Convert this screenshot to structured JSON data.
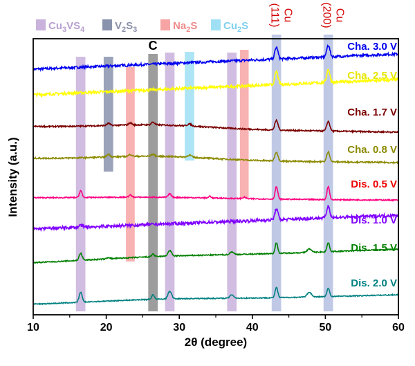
{
  "chart_data": {
    "type": "line",
    "title": "",
    "xlabel": "2θ (degree)",
    "ylabel": "Intensity (a.u.)",
    "xlim": [
      10,
      60
    ],
    "xticks": [
      10,
      20,
      30,
      40,
      50,
      60
    ],
    "legend": [
      {
        "name": "Cu3VS4",
        "color": "#c9b2dc",
        "text_color": "#b8a0d0"
      },
      {
        "name": "V2S3",
        "color": "#8a93ae",
        "text_color": "#8a8fa8"
      },
      {
        "name": "Na2S",
        "color": "#f7a4a4",
        "text_color": "#f08a8a"
      },
      {
        "name": "Cu2S",
        "color": "#9fe0f5",
        "text_color": "#7fd0f0"
      }
    ],
    "legend_display": [
      {
        "base": "Cu",
        "sub1": "3",
        "mid": "VS",
        "sub2": "4"
      },
      {
        "base": "V",
        "sub1": "2",
        "mid": "S",
        "sub2": "3"
      },
      {
        "base": "Na",
        "sub1": "2",
        "mid": "S",
        "sub2": ""
      },
      {
        "base": "Cu",
        "sub1": "2",
        "mid": "S",
        "sub2": ""
      }
    ],
    "annotation_c": "C",
    "cu_references": [
      {
        "element": "Cu",
        "hkl": "(111)",
        "position": 43.3
      },
      {
        "element": "Cu",
        "hkl": "(200)",
        "position": 50.4
      }
    ],
    "phase_bands": [
      {
        "phase": "Cu3VS4",
        "center": 16.5,
        "width": 1.3,
        "y_top": 82,
        "y_bottom": 450,
        "color": "#c9b2dc"
      },
      {
        "phase": "Cu3VS4",
        "center": 28.7,
        "width": 1.3,
        "y_top": 76,
        "y_bottom": 450,
        "color": "#c9b2dc"
      },
      {
        "phase": "Cu3VS4",
        "center": 37.2,
        "width": 1.3,
        "y_top": 76,
        "y_bottom": 450,
        "color": "#c9b2dc"
      },
      {
        "phase": "V2S3",
        "center": 20.3,
        "width": 1.3,
        "y_top": 82,
        "y_bottom": 248,
        "color": "#8a93ae"
      },
      {
        "phase": "Na2S",
        "center": 23.3,
        "width": 1.2,
        "y_top": 97,
        "y_bottom": 378,
        "color": "#f7a4a4"
      },
      {
        "phase": "Na2S",
        "center": 38.9,
        "width": 1.2,
        "y_top": 72,
        "y_bottom": 286,
        "color": "#f7a4a4"
      },
      {
        "phase": "Cu2S",
        "center": 31.4,
        "width": 1.3,
        "y_top": 75,
        "y_bottom": 232,
        "color": "#9fe0f5"
      },
      {
        "phase": "C",
        "center": 26.4,
        "width": 1.3,
        "y_top": 78,
        "y_bottom": 450,
        "color": "#8c8c8c"
      },
      {
        "phase": "Cu",
        "center": 43.3,
        "width": 1.3,
        "y_top": 50,
        "y_bottom": 450,
        "color": "#b4bfe2"
      },
      {
        "phase": "Cu",
        "center": 50.4,
        "width": 1.3,
        "y_top": 50,
        "y_bottom": 450,
        "color": "#b4bfe2"
      }
    ],
    "series": [
      {
        "name": "Cha. 3.0 V",
        "color": "#0000ee",
        "label_color": "#0000ee",
        "noise": 1.8,
        "start": 0,
        "end": 0.55,
        "bump_center": 27,
        "bump_height": 0.0,
        "bump_width": 10,
        "peaks": [
          [
            43.3,
            17,
            0.3
          ],
          [
            50.4,
            17,
            0.3
          ]
        ]
      },
      {
        "name": "Cha. 2.5 V",
        "color": "#ffff00",
        "label_color": "#e6e600",
        "noise": 2.0,
        "start": 0,
        "end": 0.55,
        "bump_center": 27,
        "bump_height": 0.0,
        "bump_width": 10,
        "peaks": [
          [
            43.3,
            19,
            0.3
          ],
          [
            50.4,
            19,
            0.3
          ]
        ]
      },
      {
        "name": "Cha. 1.7 V",
        "color": "#7a0000",
        "label_color": "#7a0000",
        "noise": 1.0,
        "start": 0,
        "end": -0.2,
        "bump_center": 27,
        "bump_height": 0.13,
        "bump_width": 10,
        "peaks": [
          [
            20.3,
            3,
            0.3
          ],
          [
            23.3,
            3,
            0.3
          ],
          [
            26.4,
            4,
            0.3
          ],
          [
            31.4,
            3,
            0.4
          ],
          [
            43.3,
            14,
            0.3
          ],
          [
            50.4,
            14,
            0.3
          ]
        ]
      },
      {
        "name": "Cha. 0.8 V",
        "color": "#8b8a00",
        "label_color": "#8b8a00",
        "noise": 1.0,
        "start": 0,
        "end": -0.15,
        "bump_center": 27,
        "bump_height": 0.13,
        "bump_width": 10,
        "peaks": [
          [
            20.3,
            4,
            0.3
          ],
          [
            23.3,
            3,
            0.3
          ],
          [
            26.4,
            3,
            0.3
          ],
          [
            31.4,
            3,
            0.4
          ],
          [
            43.3,
            13,
            0.3
          ],
          [
            50.4,
            14,
            0.3
          ]
        ]
      },
      {
        "name": "Dis. 0.5 V",
        "color": "#ff0080",
        "label_color": "#ee0000",
        "noise": 0.8,
        "start": 0,
        "end": -0.08,
        "bump_center": 27,
        "bump_height": 0.05,
        "bump_width": 12,
        "peaks": [
          [
            16.5,
            10,
            0.25
          ],
          [
            23.3,
            3,
            0.3
          ],
          [
            28.7,
            5,
            0.3
          ],
          [
            34.2,
            3,
            0.2
          ],
          [
            38.9,
            2,
            0.3
          ],
          [
            43.3,
            18,
            0.25
          ],
          [
            50.4,
            19,
            0.25
          ]
        ]
      },
      {
        "name": "Dis. 1.0 V",
        "color": "#8000ff",
        "label_color": "#8000ff",
        "noise": 2.2,
        "start": 0,
        "end": 0.5,
        "bump_center": 27,
        "bump_height": 0.0,
        "bump_width": 10,
        "peaks": [
          [
            16.5,
            3,
            0.3
          ],
          [
            43.3,
            16,
            0.3
          ],
          [
            50.4,
            17,
            0.3
          ]
        ]
      },
      {
        "name": "Dis. 1.5 V",
        "color": "#008000",
        "label_color": "#008000",
        "noise": 0.8,
        "start": 0,
        "end": 0.5,
        "bump_center": 27,
        "bump_height": 0.06,
        "bump_width": 12,
        "peaks": [
          [
            16.5,
            10,
            0.3
          ],
          [
            20.3,
            2,
            0.3
          ],
          [
            26.4,
            4,
            0.25
          ],
          [
            28.7,
            8,
            0.35
          ],
          [
            37.2,
            4,
            0.35
          ],
          [
            43.3,
            15,
            0.25
          ],
          [
            47.8,
            5,
            0.4
          ],
          [
            50.4,
            13,
            0.25
          ]
        ]
      },
      {
        "name": "Dis. 2.0 V",
        "color": "#008080",
        "label_color": "#008080",
        "noise": 0.7,
        "start": 0,
        "end": 0.35,
        "bump_center": 27,
        "bump_height": 0.07,
        "bump_width": 12,
        "peaks": [
          [
            16.5,
            14,
            0.3
          ],
          [
            26.4,
            7,
            0.25
          ],
          [
            28.7,
            11,
            0.35
          ],
          [
            37.2,
            5,
            0.35
          ],
          [
            43.3,
            15,
            0.25
          ],
          [
            47.8,
            7,
            0.4
          ],
          [
            50.4,
            12,
            0.25
          ]
        ]
      }
    ]
  }
}
